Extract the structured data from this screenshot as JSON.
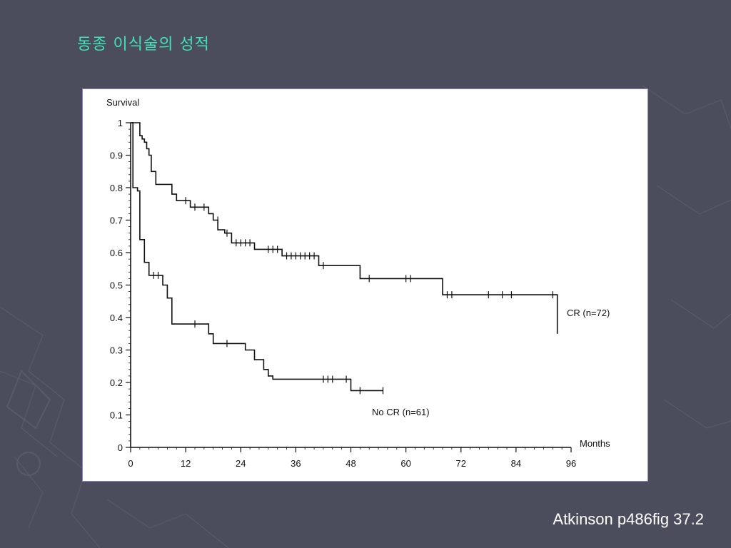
{
  "slide": {
    "title": "동종 이식술의 성적",
    "caption": "Atkinson p486fig 37.2"
  },
  "colors": {
    "background": "#4c4d5c",
    "title": "#3fe3b6",
    "caption": "#ffffff",
    "panel_border": "#8a83c7",
    "curve": "#111111"
  },
  "chart_data": {
    "type": "line",
    "step": true,
    "ylabel": "Survival",
    "xlabel": "Months",
    "xlim": [
      0,
      96
    ],
    "ylim": [
      0,
      1
    ],
    "xticks": [
      "0",
      "12",
      "24",
      "36",
      "48",
      "60",
      "72",
      "84",
      "96"
    ],
    "yticks": [
      "0",
      "0.1",
      "0.2",
      "0.3",
      "0.4",
      "0.5",
      "0.6",
      "0.7",
      "0.8",
      "0.9",
      "1"
    ],
    "grid": false,
    "series": [
      {
        "name": "CR (n=72)",
        "points": [
          [
            0,
            1.0
          ],
          [
            2,
            1.0
          ],
          [
            2,
            0.96
          ],
          [
            2.5,
            0.96
          ],
          [
            2.5,
            0.95
          ],
          [
            3,
            0.95
          ],
          [
            3,
            0.94
          ],
          [
            3.5,
            0.94
          ],
          [
            3.5,
            0.92
          ],
          [
            4,
            0.92
          ],
          [
            4,
            0.9
          ],
          [
            4.5,
            0.9
          ],
          [
            4.5,
            0.85
          ],
          [
            5.5,
            0.85
          ],
          [
            5.5,
            0.81
          ],
          [
            9,
            0.81
          ],
          [
            9,
            0.78
          ],
          [
            10,
            0.78
          ],
          [
            10,
            0.76
          ],
          [
            13,
            0.76
          ],
          [
            13,
            0.74
          ],
          [
            17,
            0.74
          ],
          [
            17,
            0.72
          ],
          [
            18,
            0.72
          ],
          [
            18,
            0.7
          ],
          [
            19,
            0.7
          ],
          [
            19,
            0.67
          ],
          [
            20.5,
            0.67
          ],
          [
            20.5,
            0.66
          ],
          [
            22,
            0.66
          ],
          [
            22,
            0.63
          ],
          [
            27,
            0.63
          ],
          [
            27,
            0.61
          ],
          [
            33,
            0.61
          ],
          [
            33,
            0.59
          ],
          [
            41,
            0.59
          ],
          [
            41,
            0.56
          ],
          [
            50,
            0.56
          ],
          [
            50,
            0.52
          ],
          [
            68,
            0.52
          ],
          [
            68,
            0.47
          ],
          [
            93,
            0.47
          ],
          [
            93,
            0.35
          ]
        ],
        "censored": [
          [
            12,
            0.76
          ],
          [
            14,
            0.74
          ],
          [
            16,
            0.74
          ],
          [
            19,
            0.7
          ],
          [
            21,
            0.66
          ],
          [
            23,
            0.63
          ],
          [
            24,
            0.63
          ],
          [
            25,
            0.63
          ],
          [
            26,
            0.63
          ],
          [
            30,
            0.61
          ],
          [
            31,
            0.61
          ],
          [
            32,
            0.61
          ],
          [
            34,
            0.59
          ],
          [
            35,
            0.59
          ],
          [
            36,
            0.59
          ],
          [
            37,
            0.59
          ],
          [
            38,
            0.59
          ],
          [
            39,
            0.59
          ],
          [
            40,
            0.59
          ],
          [
            42,
            0.56
          ],
          [
            52,
            0.52
          ],
          [
            60,
            0.52
          ],
          [
            61,
            0.52
          ],
          [
            69,
            0.47
          ],
          [
            70,
            0.47
          ],
          [
            78,
            0.47
          ],
          [
            81,
            0.47
          ],
          [
            83,
            0.47
          ],
          [
            92,
            0.47
          ]
        ]
      },
      {
        "name": "No CR (n=61)",
        "points": [
          [
            0,
            1.0
          ],
          [
            0.5,
            1.0
          ],
          [
            0.5,
            0.8
          ],
          [
            1.5,
            0.8
          ],
          [
            1.5,
            0.79
          ],
          [
            2,
            0.79
          ],
          [
            2,
            0.64
          ],
          [
            3,
            0.64
          ],
          [
            3,
            0.57
          ],
          [
            4,
            0.57
          ],
          [
            4,
            0.53
          ],
          [
            7,
            0.53
          ],
          [
            7,
            0.5
          ],
          [
            8,
            0.5
          ],
          [
            8,
            0.46
          ],
          [
            9,
            0.46
          ],
          [
            9,
            0.38
          ],
          [
            17,
            0.38
          ],
          [
            17,
            0.35
          ],
          [
            18,
            0.35
          ],
          [
            18,
            0.32
          ],
          [
            25,
            0.32
          ],
          [
            25,
            0.3
          ],
          [
            27,
            0.3
          ],
          [
            27,
            0.27
          ],
          [
            29,
            0.27
          ],
          [
            29,
            0.24
          ],
          [
            30,
            0.24
          ],
          [
            30,
            0.22
          ],
          [
            31,
            0.22
          ],
          [
            31,
            0.21
          ],
          [
            48,
            0.21
          ],
          [
            48,
            0.175
          ],
          [
            55,
            0.175
          ]
        ],
        "censored": [
          [
            5,
            0.53
          ],
          [
            6,
            0.53
          ],
          [
            14,
            0.38
          ],
          [
            21,
            0.32
          ],
          [
            42,
            0.21
          ],
          [
            43,
            0.21
          ],
          [
            44,
            0.21
          ],
          [
            47,
            0.21
          ],
          [
            50,
            0.175
          ],
          [
            55,
            0.175
          ]
        ]
      }
    ]
  }
}
